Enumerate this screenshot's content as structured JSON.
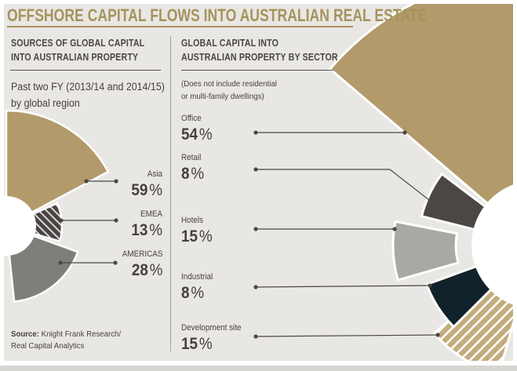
{
  "page": {
    "title": "OFFSHORE CAPITAL FLOWS INTO AUSTRALIAN REAL ESTATE",
    "source_label": "Source:",
    "source_line1": "Knight Frank Research/",
    "source_line2": "Real Capital Analytics"
  },
  "left_panel": {
    "heading_line1": "SOURCES OF GLOBAL CAPITAL",
    "heading_line2": "INTO AUSTRALIAN PROPERTY",
    "subtitle_line1": "Past two FY (2013/14 and 2014/15)",
    "subtitle_line2": "by global region",
    "segments": [
      {
        "label": "Asia",
        "value": "59",
        "suffix": "%",
        "color": "#b29a6a",
        "pattern": "solid"
      },
      {
        "label": "EMEA",
        "value": "13",
        "suffix": "%",
        "color": "#474443",
        "pattern": "hatch",
        "stripe": "#d9d7d4"
      },
      {
        "label": "AMERICAS",
        "value": "28",
        "suffix": "%",
        "color": "#807e7b",
        "pattern": "solid"
      }
    ]
  },
  "right_panel": {
    "heading_line1": "GLOBAL CAPITAL INTO",
    "heading_line2": "AUSTRALIAN PROPERTY BY SECTOR",
    "note_line1": "(Does not include residential",
    "note_line2": "or multi-family dwellings)",
    "segments": [
      {
        "label": "Office",
        "value": "54",
        "suffix": "%",
        "color": "#b29a6a",
        "pattern": "solid"
      },
      {
        "label": "Retail",
        "value": "8",
        "suffix": "%",
        "color": "#4a4745",
        "pattern": "solid"
      },
      {
        "label": "Hotels",
        "value": "15",
        "suffix": "%",
        "color": "#aaa8a5",
        "pattern": "solid"
      },
      {
        "label": "Industrial",
        "value": "8",
        "suffix": "%",
        "color": "#12222a",
        "pattern": "solid"
      },
      {
        "label": "Development site",
        "value": "15",
        "suffix": "%",
        "color": "#c3ac7d",
        "pattern": "hatch",
        "stripe": "#ffffff"
      }
    ]
  },
  "colors": {
    "background": "#e9e7e4",
    "frame": "#ffffff",
    "accent_gold": "#a6935c",
    "text_dark": "#45413e",
    "leader_line": "#4a4744",
    "divider": "#a3a19e",
    "donut_hole": "#ffffff"
  },
  "chart_data": [
    {
      "type": "pie",
      "variant": "fan-donut anchored at left edge, radius proportional to sqrt(value)",
      "title": "SOURCES OF GLOBAL CAPITAL INTO AUSTRALIAN PROPERTY",
      "subtitle": "Past two FY (2013/14 and 2014/15) by global region",
      "categories": [
        "Asia",
        "EMEA",
        "AMERICAS"
      ],
      "values": [
        59,
        13,
        28
      ],
      "unit": "%",
      "colors": [
        "#b29a6a",
        "#474443",
        "#807e7b"
      ],
      "patterns": [
        "solid",
        "white-diagonal-hatch",
        "solid"
      ],
      "legend_position": "right of fan via leader lines"
    },
    {
      "type": "pie",
      "variant": "fan-donut anchored at right edge, radius proportional to sqrt(value), Hotels slice exploded",
      "title": "GLOBAL CAPITAL INTO AUSTRALIAN PROPERTY BY SECTOR",
      "note": "(Does not include residential or multi-family dwellings)",
      "categories": [
        "Office",
        "Retail",
        "Hotels",
        "Industrial",
        "Development site"
      ],
      "values": [
        54,
        8,
        15,
        8,
        15
      ],
      "unit": "%",
      "colors": [
        "#b29a6a",
        "#4a4745",
        "#aaa8a5",
        "#12222a",
        "#c3ac7d"
      ],
      "patterns": [
        "solid",
        "solid",
        "solid",
        "solid",
        "white-diagonal-hatch"
      ],
      "legend_position": "left of fan via leader lines"
    }
  ]
}
